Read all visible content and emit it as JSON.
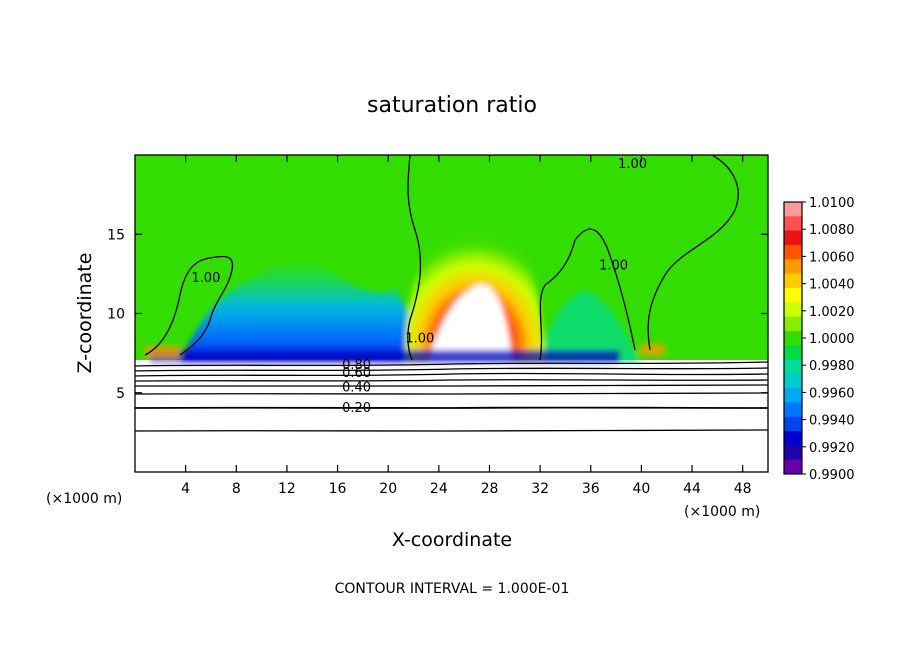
{
  "chart_data": {
    "type": "heatmap",
    "title": "saturation ratio",
    "xlabel": "X-coordinate",
    "ylabel": "Z-coordinate",
    "x_unit_left": "(×1000 m)",
    "x_unit_right": "(×1000 m)",
    "xlim": [
      0,
      50
    ],
    "ylim": [
      0,
      20
    ],
    "x_ticks": [
      4,
      8,
      12,
      16,
      20,
      24,
      28,
      32,
      36,
      40,
      44,
      48
    ],
    "x_tick_labels": [
      "4",
      "8",
      "12",
      "16",
      "20",
      "24",
      "28",
      "32",
      "36",
      "40",
      "44",
      "48"
    ],
    "y_ticks": [
      5,
      10,
      15
    ],
    "y_tick_labels": [
      "5",
      "10",
      "15"
    ],
    "colorbar": {
      "range": [
        0.99,
        1.01
      ],
      "labels": [
        "1.0100",
        "1.0080",
        "1.0060",
        "1.0040",
        "1.0020",
        "1.0000",
        "0.9980",
        "0.9960",
        "0.9940",
        "0.9920",
        "0.9900"
      ],
      "colors": [
        "#ff9999",
        "#ff5050",
        "#ee1111",
        "#ff5500",
        "#ff9900",
        "#ffcc00",
        "#ffff00",
        "#ccff00",
        "#88ee00",
        "#33dd00",
        "#00dd44",
        "#00dd99",
        "#00cccc",
        "#00aaee",
        "#0077ff",
        "#0044ee",
        "#0000cc",
        "#2200aa",
        "#6600aa"
      ]
    },
    "contour_labels": [
      {
        "text": "1.00",
        "x": 39.3,
        "z": 19.5
      },
      {
        "text": "1.00",
        "x": 5.6,
        "z": 12.3
      },
      {
        "text": "1.00",
        "x": 37.8,
        "z": 13.1
      },
      {
        "text": "1.00",
        "x": 22.5,
        "z": 8.5
      },
      {
        "text": "0.80",
        "x": 17.5,
        "z": 6.8
      },
      {
        "text": "0.60",
        "x": 17.5,
        "z": 6.3
      },
      {
        "text": "0.40",
        "x": 17.5,
        "z": 5.4
      },
      {
        "text": "0.20",
        "x": 17.5,
        "z": 4.1
      }
    ],
    "contour_interval_text": "CONTOUR INTERVAL = 1.000E-01"
  }
}
